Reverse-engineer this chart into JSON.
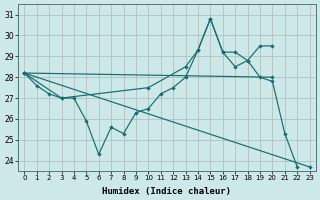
{
  "background_color": "#cce8e8",
  "grid_color": "#aabbbb",
  "line_color": "#1a6b6b",
  "xlabel": "Humidex (Indice chaleur)",
  "ylim": [
    23.5,
    31.5
  ],
  "xlim": [
    -0.5,
    23.5
  ],
  "yticks": [
    24,
    25,
    26,
    27,
    28,
    29,
    30,
    31
  ],
  "xticks": [
    0,
    1,
    2,
    3,
    4,
    5,
    6,
    7,
    8,
    9,
    10,
    11,
    12,
    13,
    14,
    15,
    16,
    17,
    18,
    19,
    20,
    21,
    22,
    23
  ],
  "lines": [
    {
      "x": [
        0,
        1,
        2,
        3,
        4,
        5,
        6,
        7,
        8,
        9,
        10,
        11,
        12,
        13,
        14,
        15,
        16,
        17,
        18,
        19,
        20,
        21,
        22
      ],
      "y": [
        28.2,
        27.6,
        27.2,
        27.0,
        27.0,
        25.9,
        24.3,
        25.6,
        25.3,
        26.3,
        26.5,
        27.2,
        27.5,
        28.0,
        29.3,
        30.8,
        29.2,
        28.5,
        28.8,
        28.0,
        27.8,
        25.3,
        23.7
      ]
    },
    {
      "x": [
        0,
        20
      ],
      "y": [
        28.2,
        28.0
      ]
    },
    {
      "x": [
        0,
        23
      ],
      "y": [
        28.2,
        23.7
      ]
    },
    {
      "x": [
        0,
        3,
        10,
        13,
        14,
        15,
        16,
        17,
        18,
        19,
        20
      ],
      "y": [
        28.2,
        27.0,
        27.5,
        28.5,
        29.3,
        30.8,
        29.2,
        29.2,
        28.8,
        29.5,
        29.5
      ]
    }
  ]
}
